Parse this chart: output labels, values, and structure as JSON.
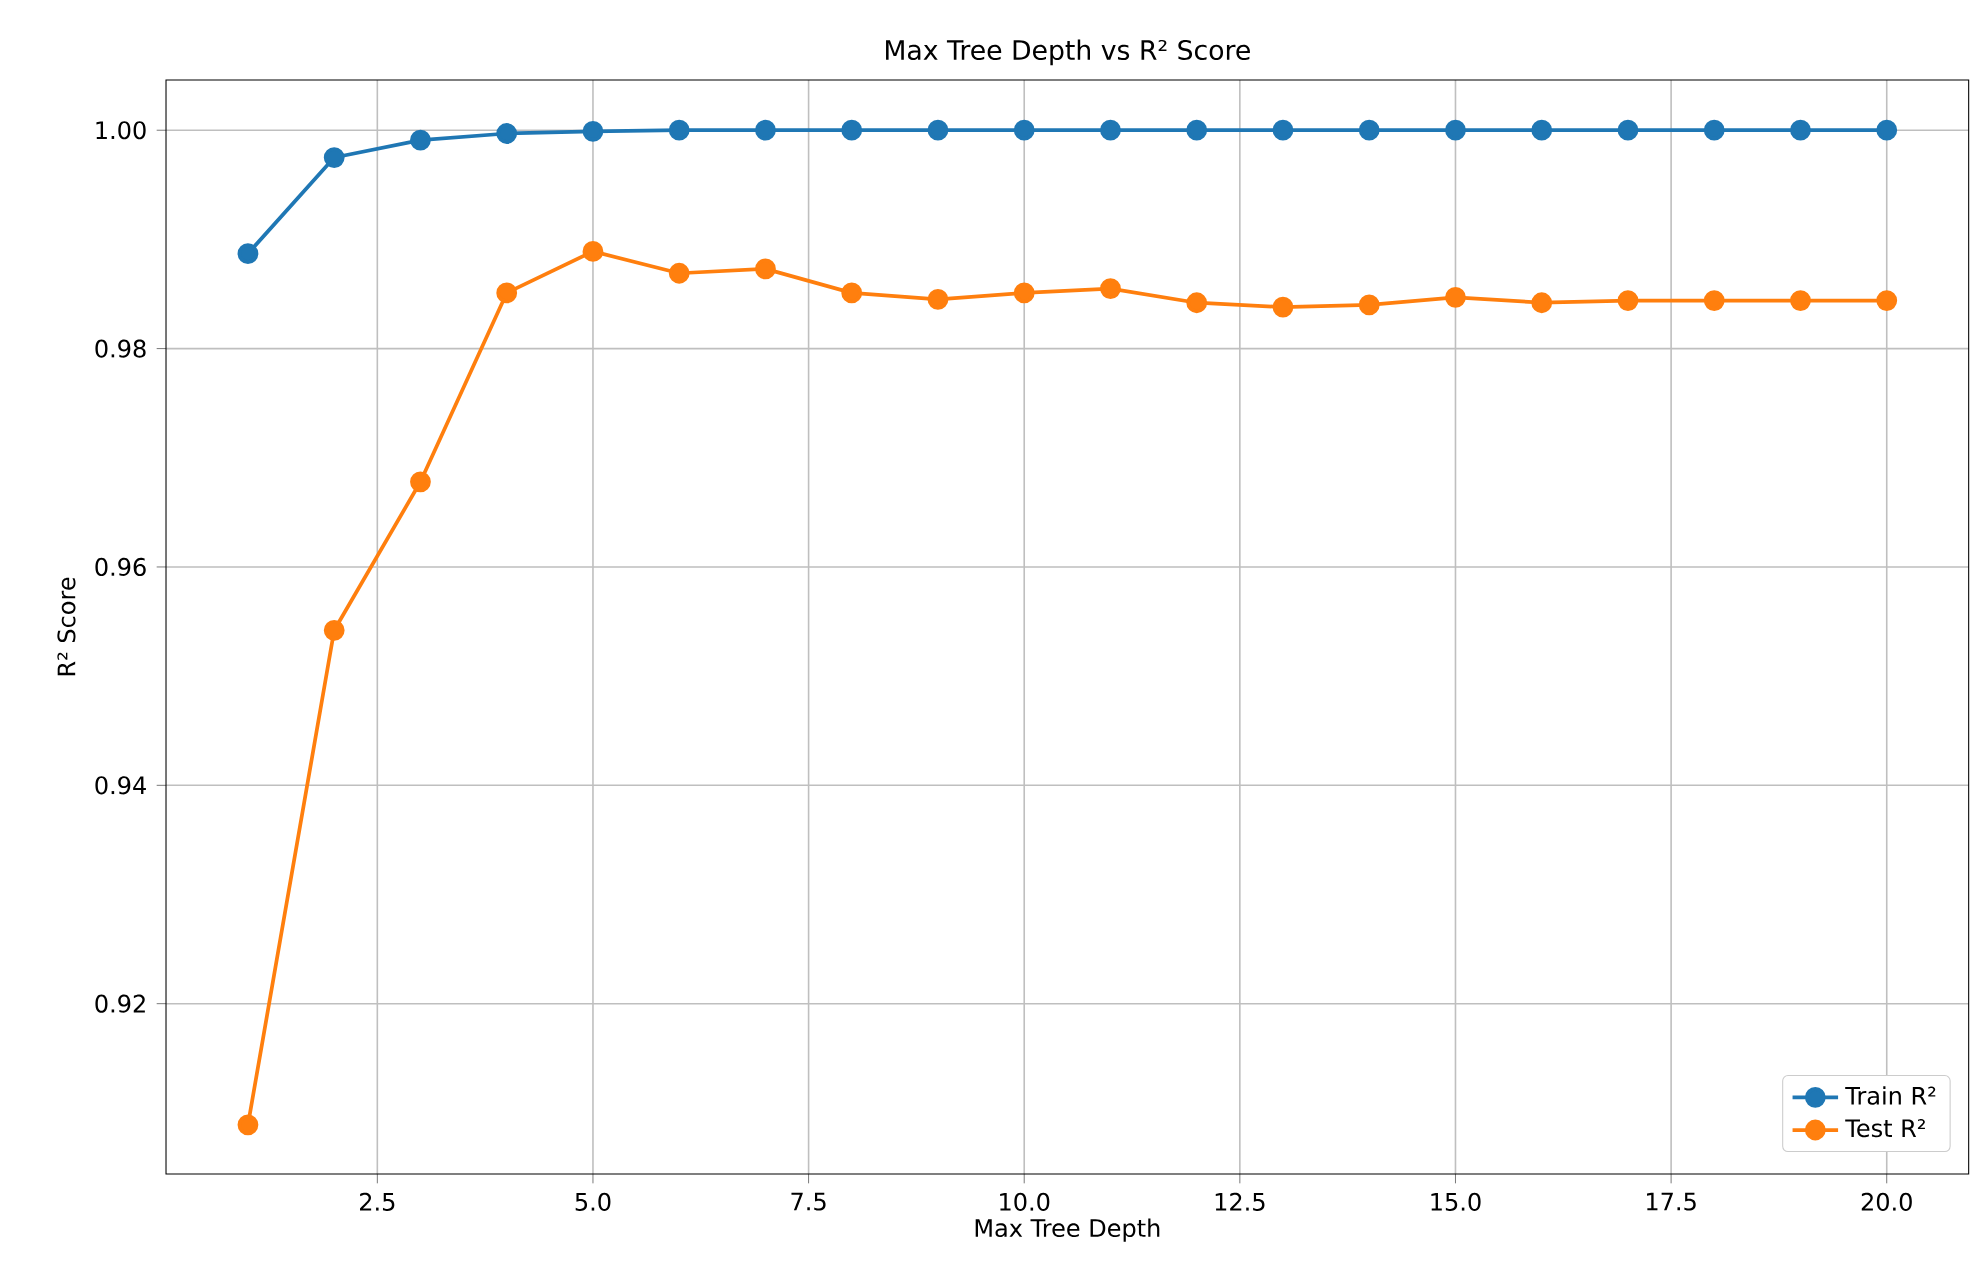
{
  "chart_data": {
    "type": "line",
    "title": "Max Tree Depth vs R² Score",
    "xlabel": "Max Tree Depth",
    "ylabel": "R² Score",
    "x": [
      1,
      2,
      3,
      4,
      5,
      6,
      7,
      8,
      9,
      10,
      11,
      12,
      13,
      14,
      15,
      16,
      17,
      18,
      19,
      20
    ],
    "series": [
      {
        "name": "Train R²",
        "color": "#1f77b4",
        "values": [
          0.9887,
          0.9975,
          0.9991,
          0.9997,
          0.9999,
          1.0,
          1.0,
          1.0,
          1.0,
          1.0,
          1.0,
          1.0,
          1.0,
          1.0,
          1.0,
          1.0,
          1.0,
          1.0,
          1.0,
          1.0
        ]
      },
      {
        "name": "Test R²",
        "color": "#ff7f0e",
        "values": [
          0.9089,
          0.9542,
          0.9678,
          0.9851,
          0.9889,
          0.9869,
          0.9873,
          0.9851,
          0.9845,
          0.9851,
          0.9855,
          0.9842,
          0.9838,
          0.984,
          0.9847,
          0.9842,
          0.9844,
          0.9844,
          0.9844,
          0.9844
        ]
      }
    ],
    "xlim": [
      0.05,
      20.95
    ],
    "ylim": [
      0.9044,
      1.0046
    ],
    "xticks": [
      {
        "value": 2.5,
        "label": "2.5"
      },
      {
        "value": 5,
        "label": "5.0"
      },
      {
        "value": 7.5,
        "label": "7.5"
      },
      {
        "value": 10,
        "label": "10.0"
      },
      {
        "value": 12.5,
        "label": "12.5"
      },
      {
        "value": 15,
        "label": "15.0"
      },
      {
        "value": 17.5,
        "label": "17.5"
      },
      {
        "value": 20,
        "label": "20.0"
      }
    ],
    "yticks": [
      {
        "value": 0.92,
        "label": "0.92"
      },
      {
        "value": 0.94,
        "label": "0.94"
      },
      {
        "value": 0.96,
        "label": "0.96"
      },
      {
        "value": 0.98,
        "label": "0.98"
      },
      {
        "value": 1.0,
        "label": "1.00"
      }
    ],
    "grid": true,
    "legend": "bottom right",
    "marker": "circle",
    "line_style": "solid"
  }
}
